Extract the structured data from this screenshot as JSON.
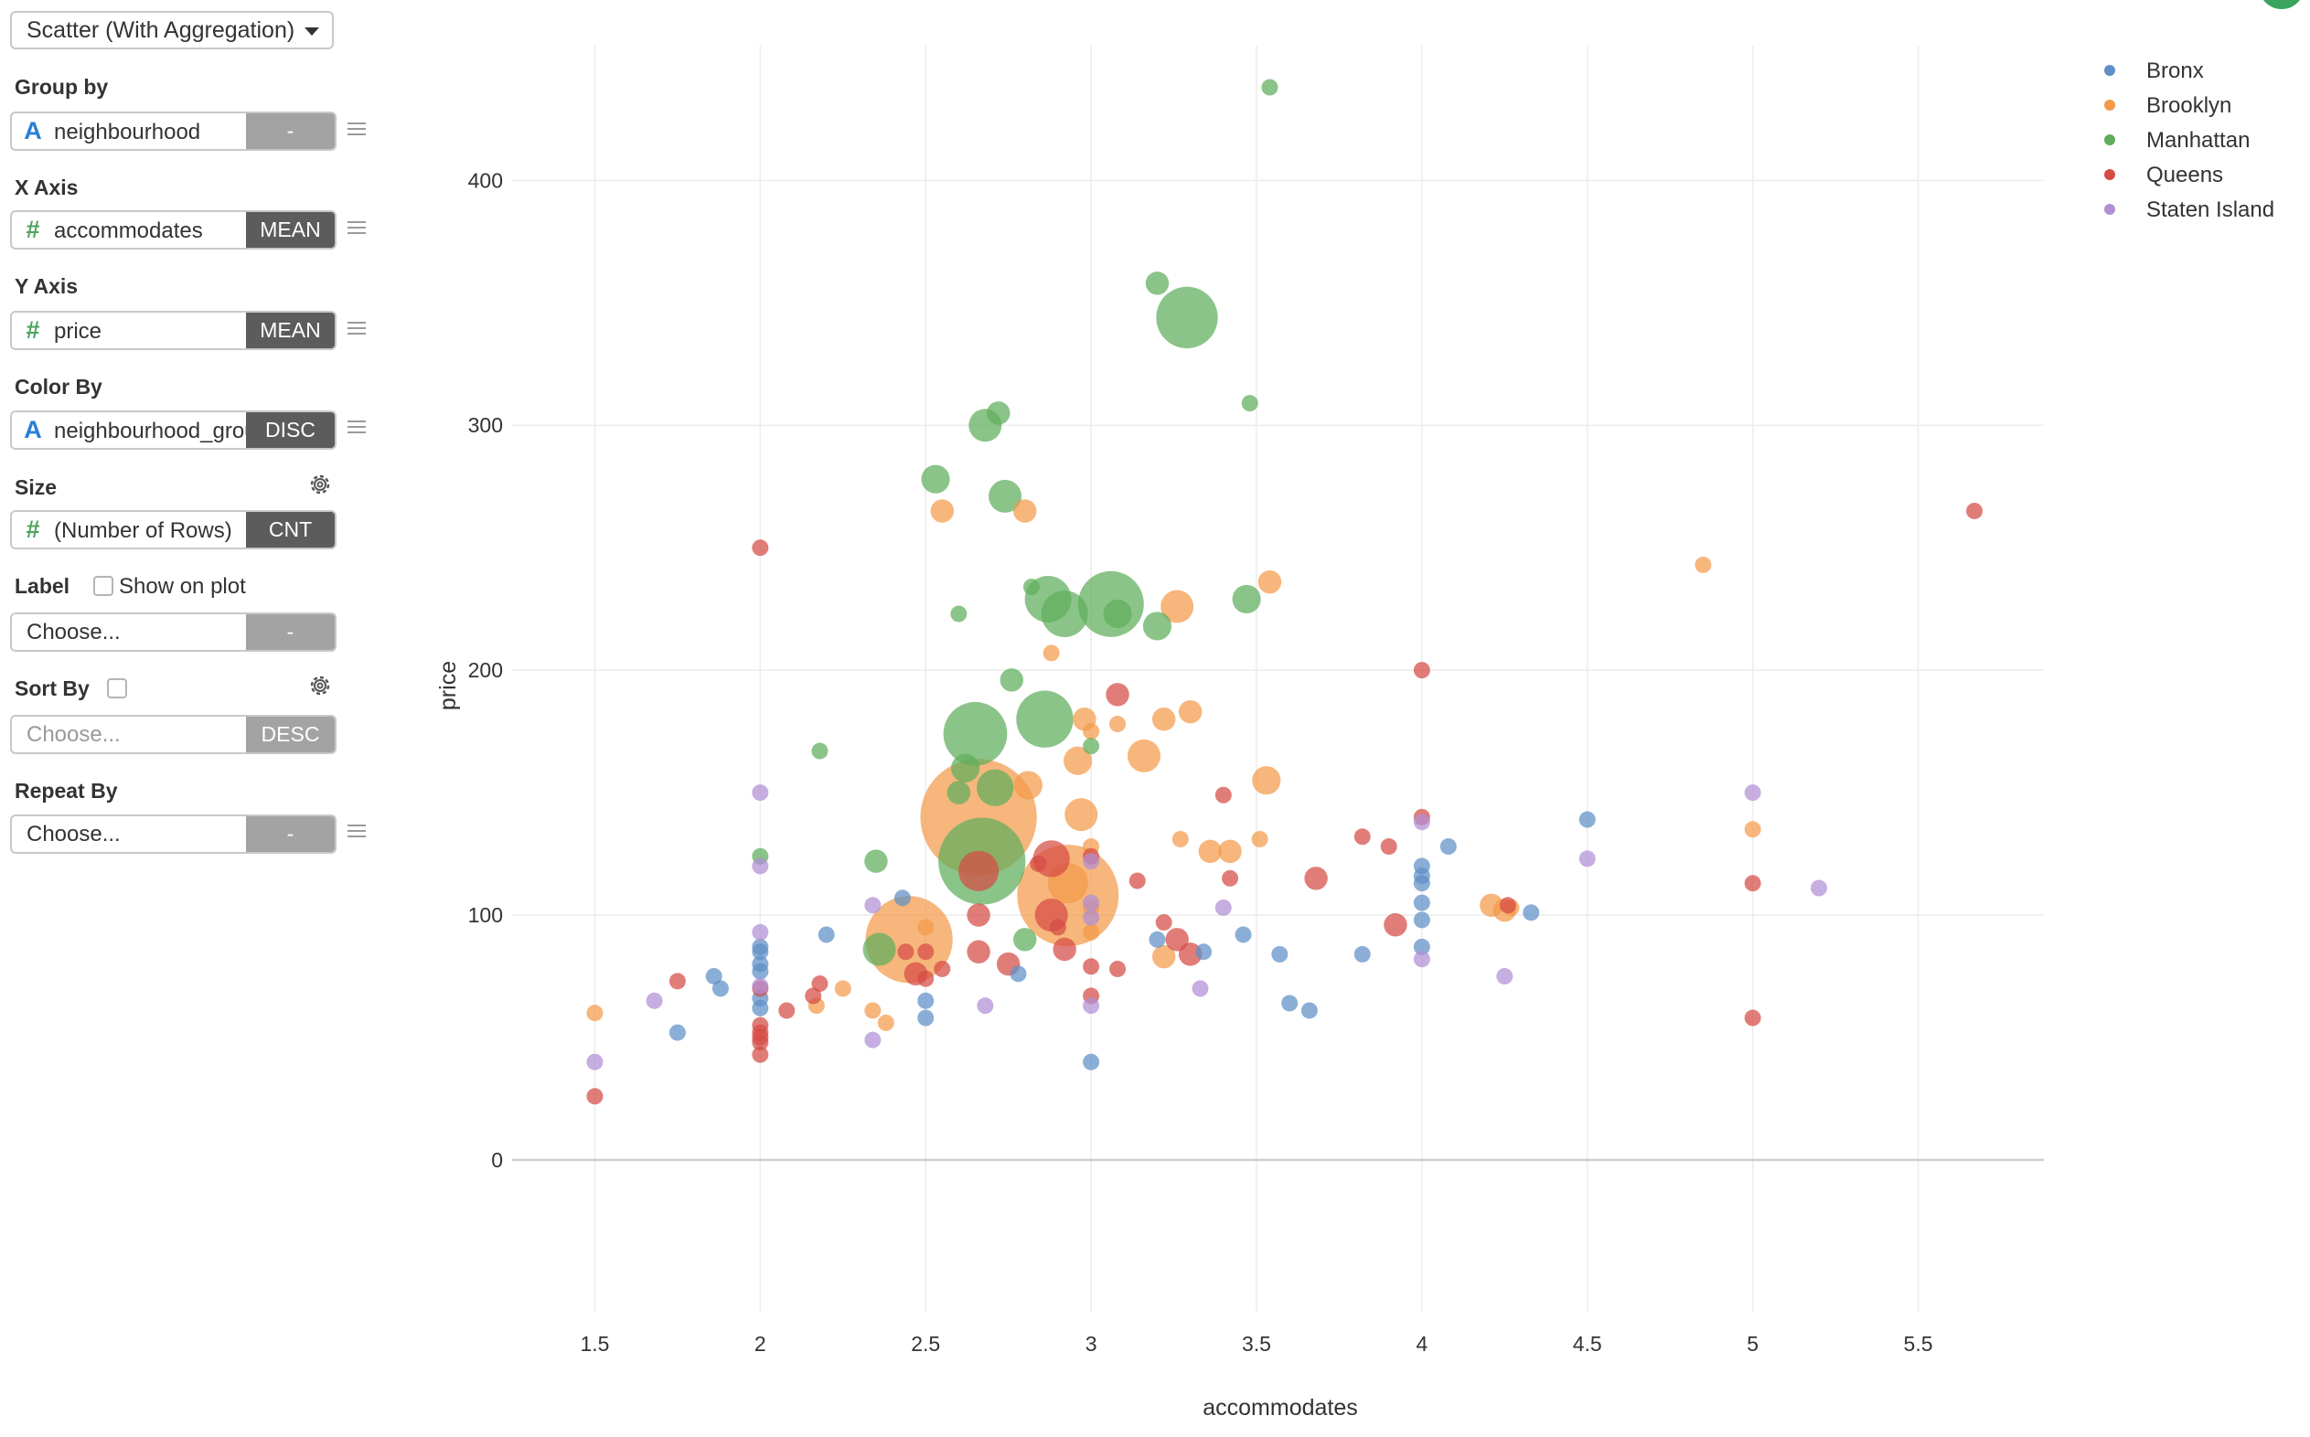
{
  "sidebar": {
    "chart_type": "Scatter (With Aggregation)",
    "group_by": {
      "label": "Group by",
      "field": "neighbourhood",
      "type_icon": "A",
      "agg": "-"
    },
    "x_axis": {
      "label": "X Axis",
      "field": "accommodates",
      "type_icon": "#",
      "agg": "MEAN"
    },
    "y_axis": {
      "label": "Y Axis",
      "field": "price",
      "type_icon": "#",
      "agg": "MEAN"
    },
    "color_by": {
      "label": "Color By",
      "field": "neighbourhood_group",
      "type_icon": "A",
      "agg": "DISC"
    },
    "size": {
      "label": "Size",
      "field": "(Number of Rows)",
      "type_icon": "#",
      "agg": "CNT"
    },
    "label": {
      "label": "Label",
      "checkbox_label": "Show on plot",
      "placeholder": "Choose...",
      "agg": "-"
    },
    "sort_by": {
      "label": "Sort By",
      "placeholder": "Choose...",
      "agg": "DESC"
    },
    "repeat_by": {
      "label": "Repeat By",
      "placeholder": "Choose...",
      "agg": "-"
    }
  },
  "chart_data": {
    "type": "scatter",
    "xlabel": "accommodates",
    "ylabel": "price",
    "xlim": [
      1.25,
      5.88
    ],
    "ylim": [
      -62,
      455
    ],
    "x_ticks": [
      1.5,
      2,
      2.5,
      3,
      3.5,
      4,
      4.5,
      5,
      5.5
    ],
    "x_tick_labels": [
      "1.5",
      "2",
      "2.5",
      "3",
      "3.5",
      "4",
      "4.5",
      "5",
      "5.5"
    ],
    "y_ticks": [
      0,
      100,
      200,
      300,
      400
    ],
    "y_tick_labels": [
      "0",
      "100",
      "200",
      "300",
      "400"
    ],
    "grid": true,
    "legend_position": "top-right",
    "series": [
      {
        "name": "Bronx",
        "color": "#5e8fc6",
        "points": [
          [
            1.86,
            75,
            1
          ],
          [
            1.88,
            70,
            1
          ],
          [
            1.75,
            52,
            1
          ],
          [
            2,
            87,
            1
          ],
          [
            2,
            85,
            1
          ],
          [
            2,
            80,
            1
          ],
          [
            2,
            77,
            1
          ],
          [
            2,
            66,
            1
          ],
          [
            2,
            62,
            1
          ],
          [
            2.2,
            92,
            1
          ],
          [
            2.43,
            107,
            1
          ],
          [
            2.5,
            65,
            1
          ],
          [
            2.5,
            58,
            1
          ],
          [
            2.78,
            76,
            1
          ],
          [
            3,
            40,
            1
          ],
          [
            3.2,
            90,
            1
          ],
          [
            3.34,
            85,
            1
          ],
          [
            3.46,
            92,
            1
          ],
          [
            3.57,
            84,
            1
          ],
          [
            3.6,
            64,
            1
          ],
          [
            3.66,
            61,
            1
          ],
          [
            3.82,
            84,
            1
          ],
          [
            4,
            120,
            1
          ],
          [
            4,
            116,
            1
          ],
          [
            4,
            113,
            1
          ],
          [
            4,
            105,
            1
          ],
          [
            4,
            98,
            1
          ],
          [
            4,
            87,
            1
          ],
          [
            4.08,
            128,
            1
          ],
          [
            4.33,
            101,
            1
          ],
          [
            4.5,
            139,
            1
          ]
        ]
      },
      {
        "name": "Brooklyn",
        "color": "#f29a4a",
        "points": [
          [
            1.5,
            60,
            1
          ],
          [
            2.17,
            63,
            1
          ],
          [
            2.25,
            70,
            1
          ],
          [
            2.34,
            61,
            1
          ],
          [
            2.38,
            56,
            1
          ],
          [
            2.5,
            95,
            1
          ],
          [
            2.45,
            90,
            28
          ],
          [
            2.55,
            265,
            2
          ],
          [
            2.66,
            140,
            50
          ],
          [
            2.8,
            265,
            2
          ],
          [
            2.81,
            153,
            3
          ],
          [
            2.88,
            207,
            1
          ],
          [
            2.93,
            113,
            6
          ],
          [
            2.93,
            108,
            38
          ],
          [
            2.96,
            163,
            3
          ],
          [
            2.97,
            141,
            4
          ],
          [
            2.98,
            180,
            2
          ],
          [
            3.0,
            175,
            1
          ],
          [
            3.0,
            128,
            1
          ],
          [
            3.0,
            103,
            1
          ],
          [
            3.0,
            93,
            1
          ],
          [
            3.08,
            178,
            1
          ],
          [
            3.16,
            165,
            4
          ],
          [
            3.26,
            226,
            4
          ],
          [
            3.22,
            180,
            2
          ],
          [
            3.3,
            183,
            2
          ],
          [
            3.22,
            83,
            2
          ],
          [
            3.27,
            131,
            1
          ],
          [
            3.36,
            126,
            2
          ],
          [
            3.42,
            126,
            2
          ],
          [
            3.51,
            131,
            1
          ],
          [
            3.53,
            155,
            3
          ],
          [
            3.54,
            236,
            2
          ],
          [
            4.21,
            104,
            2
          ],
          [
            4.25,
            102,
            2
          ],
          [
            4.27,
            103,
            1
          ],
          [
            4.85,
            243,
            1
          ],
          [
            5,
            135,
            1
          ]
        ]
      },
      {
        "name": "Manhattan",
        "color": "#5ead5b",
        "points": [
          [
            2,
            124,
            1
          ],
          [
            2.18,
            167,
            1
          ],
          [
            2.35,
            122,
            2
          ],
          [
            2.36,
            86,
            4
          ],
          [
            2.53,
            278,
            3
          ],
          [
            2.6,
            223,
            1
          ],
          [
            2.6,
            150,
            2
          ],
          [
            2.65,
            174,
            15
          ],
          [
            2.67,
            122,
            28
          ],
          [
            2.68,
            300,
            4
          ],
          [
            2.71,
            152,
            5
          ],
          [
            2.72,
            305,
            2
          ],
          [
            2.74,
            271,
            4
          ],
          [
            2.76,
            196,
            2
          ],
          [
            2.8,
            90,
            2
          ],
          [
            2.82,
            234,
            1
          ],
          [
            2.86,
            180,
            12
          ],
          [
            2.87,
            229,
            8
          ],
          [
            2.92,
            223,
            8
          ],
          [
            3,
            169,
            1
          ],
          [
            3.06,
            227,
            16
          ],
          [
            3.08,
            223,
            3
          ],
          [
            3.2,
            358,
            2
          ],
          [
            3.29,
            344,
            14
          ],
          [
            3.2,
            218,
            3
          ],
          [
            3.47,
            229,
            3
          ],
          [
            3.48,
            309,
            1
          ],
          [
            3.54,
            438,
            1
          ],
          [
            2.62,
            160,
            3
          ]
        ]
      },
      {
        "name": "Queens",
        "color": "#d64b45",
        "points": [
          [
            1.5,
            26,
            1
          ],
          [
            1.75,
            73,
            1
          ],
          [
            2,
            250,
            1
          ],
          [
            2,
            70,
            1
          ],
          [
            2,
            55,
            1
          ],
          [
            2,
            48,
            1
          ],
          [
            2,
            43,
            1
          ],
          [
            2,
            50,
            1
          ],
          [
            2,
            52,
            1
          ],
          [
            2.08,
            61,
            1
          ],
          [
            2.16,
            67,
            1
          ],
          [
            2.18,
            72,
            1
          ],
          [
            2.44,
            85,
            1
          ],
          [
            2.47,
            76,
            2
          ],
          [
            2.5,
            74,
            1
          ],
          [
            2.5,
            85,
            1
          ],
          [
            2.55,
            78,
            1
          ],
          [
            2.66,
            118,
            6
          ],
          [
            2.66,
            100,
            2
          ],
          [
            2.66,
            85,
            2
          ],
          [
            2.75,
            80,
            2
          ],
          [
            2.84,
            121,
            1
          ],
          [
            2.88,
            123,
            5
          ],
          [
            2.88,
            100,
            4
          ],
          [
            2.9,
            95,
            1
          ],
          [
            2.92,
            86,
            2
          ],
          [
            3,
            124,
            1
          ],
          [
            3,
            67,
            1
          ],
          [
            3,
            79,
            1
          ],
          [
            3.08,
            190,
            2
          ],
          [
            3.08,
            78,
            1
          ],
          [
            3.14,
            114,
            1
          ],
          [
            3.22,
            97,
            1
          ],
          [
            3.26,
            90,
            2
          ],
          [
            3.3,
            84,
            2
          ],
          [
            3.4,
            149,
            1
          ],
          [
            3.42,
            115,
            1
          ],
          [
            3.68,
            115,
            2
          ],
          [
            3.82,
            132,
            1
          ],
          [
            3.9,
            128,
            1
          ],
          [
            3.92,
            96,
            2
          ],
          [
            4,
            140,
            1
          ],
          [
            4,
            200,
            1
          ],
          [
            4.26,
            104,
            1
          ],
          [
            5,
            113,
            1
          ],
          [
            5,
            58,
            1
          ],
          [
            5.67,
            265,
            1
          ]
        ]
      },
      {
        "name": "Staten Island",
        "color": "#b08fd6",
        "points": [
          [
            1.5,
            40,
            1
          ],
          [
            1.68,
            65,
            1
          ],
          [
            2,
            150,
            1
          ],
          [
            2,
            120,
            1
          ],
          [
            2,
            93,
            1
          ],
          [
            2,
            71,
            1
          ],
          [
            2.34,
            104,
            1
          ],
          [
            2.34,
            49,
            1
          ],
          [
            2.68,
            63,
            1
          ],
          [
            3,
            122,
            1
          ],
          [
            3,
            105,
            1
          ],
          [
            3,
            99,
            1
          ],
          [
            3,
            63,
            1
          ],
          [
            3.33,
            70,
            1
          ],
          [
            3.4,
            103,
            1
          ],
          [
            4,
            138,
            1
          ],
          [
            4,
            82,
            1
          ],
          [
            4.25,
            75,
            1
          ],
          [
            4.5,
            123,
            1
          ],
          [
            5,
            150,
            1
          ],
          [
            5.2,
            111,
            1
          ]
        ]
      }
    ]
  }
}
